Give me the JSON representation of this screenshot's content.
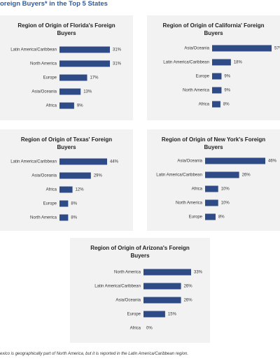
{
  "title": "oreign Buyers* in the Top 5 States",
  "footnote": "exico is geographically part of North America, but it is reported in the Latin America/Caribbean region.",
  "chart_data": [
    {
      "type": "bar",
      "orientation": "horizontal",
      "title": "Region of Origin of Florida's Foreign Buyers",
      "color": "#2e4a87",
      "categories": [
        "Latin America/Caribbean",
        "North America",
        "Europe",
        "Asia/Oceania",
        "Africa"
      ],
      "values": [
        31,
        31,
        17,
        13,
        9
      ],
      "value_labels": [
        "31%",
        "31%",
        "17%",
        "13%",
        "9%"
      ]
    },
    {
      "type": "bar",
      "orientation": "horizontal",
      "title": "Region of Origin of California' Foreign Buyers",
      "color": "#2e4a87",
      "categories": [
        "Asia/Oceania",
        "Latin America/Caribbean",
        "Europe",
        "North America",
        "Africa"
      ],
      "values": [
        57,
        18,
        9,
        9,
        8
      ],
      "value_labels": [
        "57%",
        "18%",
        "9%",
        "9%",
        "8%"
      ]
    },
    {
      "type": "bar",
      "orientation": "horizontal",
      "title": "Region of Origin of  Texas' Foreign Buyers",
      "color": "#2e4a87",
      "categories": [
        "Latin America/Caribbean",
        "Asia/Oceania",
        "Africa",
        "Europe",
        "North America"
      ],
      "values": [
        44,
        29,
        12,
        8,
        8
      ],
      "value_labels": [
        "44%",
        "29%",
        "12%",
        "8%",
        "8%"
      ]
    },
    {
      "type": "bar",
      "orientation": "horizontal",
      "title": "Region of Origin of New York's Foreign Buyers",
      "color": "#2e4a87",
      "categories": [
        "Asia/Oceania",
        "Latin America/Caribbean",
        "Africa",
        "North America",
        "Europe"
      ],
      "values": [
        46,
        26,
        10,
        10,
        8
      ],
      "value_labels": [
        "46%",
        "26%",
        "10%",
        "10%",
        "8%"
      ]
    },
    {
      "type": "bar",
      "orientation": "horizontal",
      "title": "Region of Origin of Arizona's Foreign Buyers",
      "color": "#2e4a87",
      "categories": [
        "North America",
        "Latin America/Caribbean",
        "Asia/Oceania",
        "Europe",
        "Africa"
      ],
      "values": [
        33,
        26,
        26,
        15,
        0
      ],
      "value_labels": [
        "33%",
        "26%",
        "26%",
        "15%",
        "0%"
      ]
    }
  ]
}
